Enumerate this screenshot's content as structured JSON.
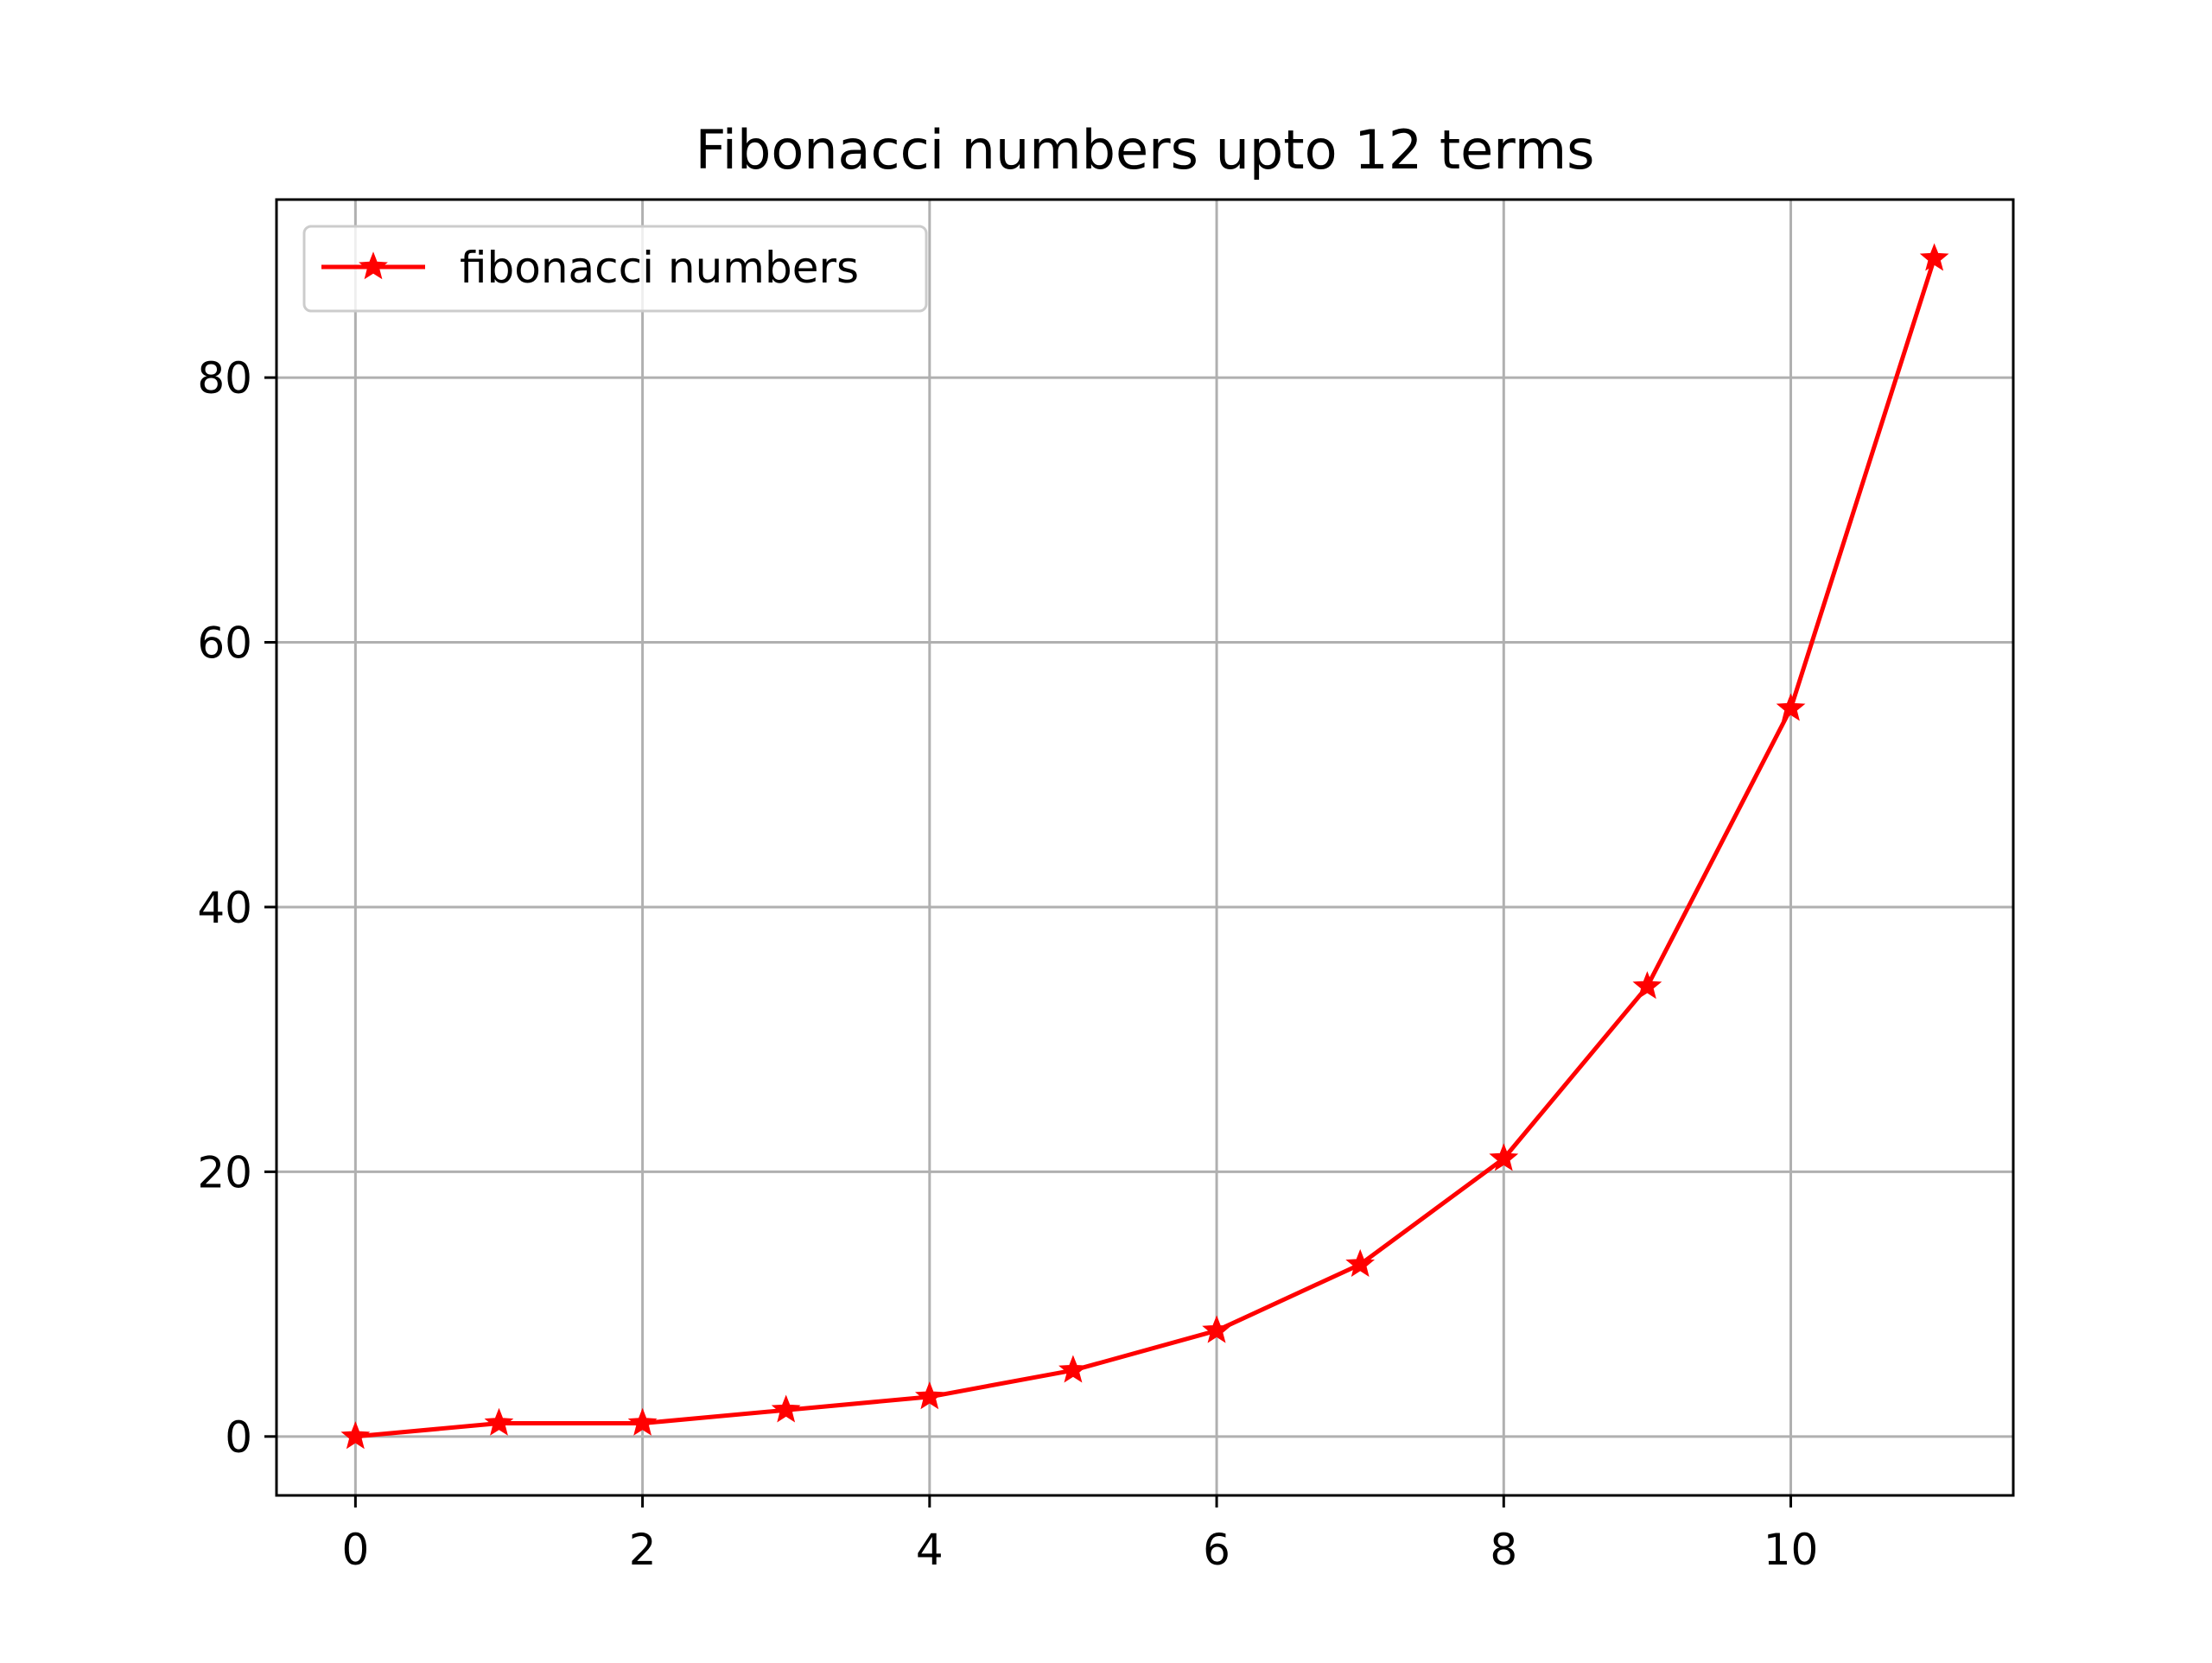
{
  "chart_data": {
    "type": "line",
    "title": "Fibonacci numbers upto 12 terms",
    "xlabel": "",
    "ylabel": "",
    "x": [
      0,
      1,
      2,
      3,
      4,
      5,
      6,
      7,
      8,
      9,
      10,
      11
    ],
    "series": [
      {
        "name": "fibonacci numbers",
        "values": [
          0,
          1,
          1,
          2,
          3,
          5,
          8,
          13,
          21,
          34,
          55,
          89
        ],
        "color": "#ff0000",
        "marker": "star"
      }
    ],
    "xlim": [
      -0.55,
      11.55
    ],
    "ylim": [
      -4.45,
      93.45
    ],
    "xticks": [
      0,
      2,
      4,
      6,
      8,
      10
    ],
    "yticks": [
      0,
      20,
      40,
      60,
      80
    ],
    "xtick_labels": [
      "0",
      "2",
      "4",
      "6",
      "8",
      "10"
    ],
    "ytick_labels": [
      "0",
      "20",
      "40",
      "60",
      "80"
    ],
    "grid": true,
    "legend_position": "top-left"
  },
  "colors": {
    "series": "#ff0000",
    "grid": "#b0b0b0",
    "axes": "#000000",
    "legend_border": "#cccccc"
  }
}
